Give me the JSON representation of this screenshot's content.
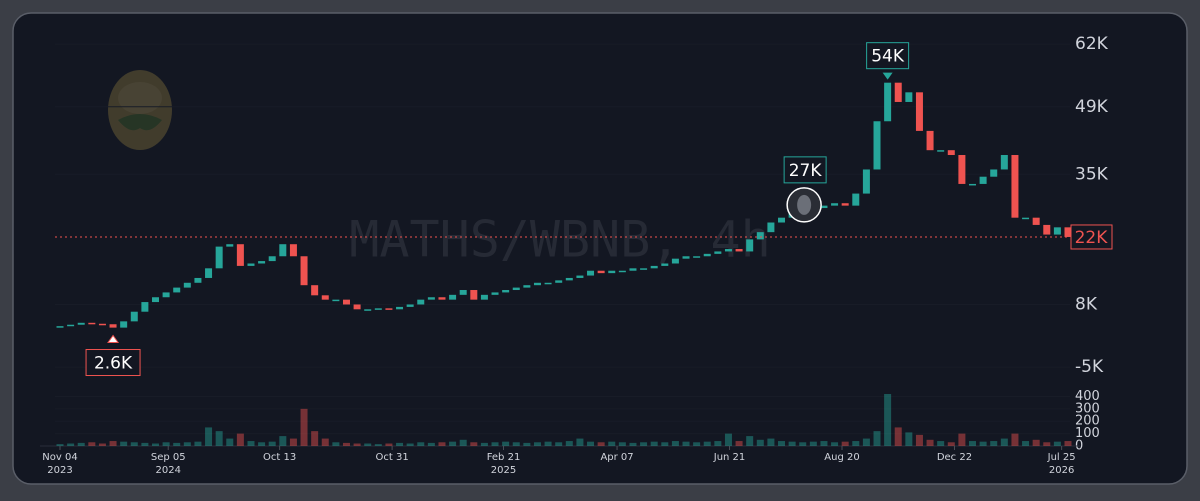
{
  "chart_data": {
    "type": "candlestick",
    "watermark": "MATHS/WBNB, 4h",
    "colors": {
      "up": "#26a69a",
      "down": "#ef5350"
    },
    "xlim": [
      -1,
      96.5
    ],
    "xticks": [
      {
        "value": 0,
        "label": "Nov 04"
      },
      {
        "value": 10.2,
        "label": "Sep 05"
      },
      {
        "value": 20.7,
        "label": "Oct 13"
      },
      {
        "value": 31.3,
        "label": "Oct 31"
      },
      {
        "value": 41.8,
        "label": "Feb 21"
      },
      {
        "value": 52.5,
        "label": "Apr 07"
      },
      {
        "value": 63.1,
        "label": "Jun 21"
      },
      {
        "value": 73.7,
        "label": "Aug 20"
      },
      {
        "value": 84.3,
        "label": "Dec 22"
      },
      {
        "value": 94.4,
        "label": "Jul 25"
      }
    ],
    "xtick_years": [
      "2023",
      "2024",
      null,
      null,
      "2025",
      null,
      null,
      null,
      null,
      "2026"
    ],
    "ylim": [
      -8700,
      67000
    ],
    "yticks": [
      {
        "value": 62000,
        "label": "62K"
      },
      {
        "value": 49000,
        "label": "49K"
      },
      {
        "value": 35000,
        "label": "35K"
      },
      {
        "value": 8000,
        "label": "8K"
      },
      {
        "value": -5000,
        "label": "-5K"
      }
    ],
    "open": [
      3300,
      3500,
      3800,
      4200,
      4000,
      3900,
      3200,
      4500,
      6500,
      8500,
      9500,
      10500,
      11500,
      12500,
      13500,
      15500,
      20000,
      20500,
      16000,
      16500,
      17000,
      18000,
      20500,
      18000,
      12000,
      9900,
      9000,
      9000,
      8000,
      7000,
      7000,
      7200,
      7000,
      7500,
      8000,
      9000,
      9500,
      9000,
      10000,
      11000,
      9000,
      10000,
      10500,
      11000,
      11500,
      12000,
      12500,
      12500,
      13000,
      13500,
      14000,
      15000,
      14500,
      15000,
      15000,
      15500,
      15500,
      16000,
      16500,
      17500,
      18000,
      18000,
      18500,
      19000,
      19500,
      19000,
      21500,
      23000,
      25000,
      26000,
      27000,
      27500,
      28000,
      28500,
      29000,
      28500,
      31000,
      36000,
      46000,
      54000,
      50000,
      52000,
      44000,
      40000,
      40000,
      39000,
      33000,
      33000,
      34500,
      36000,
      39000,
      26000,
      26000,
      24500,
      22500,
      24000
    ],
    "close": [
      3500,
      3800,
      4200,
      4000,
      3900,
      3200,
      4500,
      6500,
      8500,
      9500,
      10500,
      11500,
      12500,
      13500,
      15500,
      20000,
      20500,
      16000,
      16500,
      17000,
      18000,
      20500,
      18000,
      12000,
      9900,
      9000,
      9000,
      8000,
      7000,
      7000,
      7200,
      7000,
      7500,
      8000,
      9000,
      9500,
      9000,
      10000,
      11000,
      9000,
      10000,
      10500,
      11000,
      11500,
      12000,
      12500,
      12500,
      13000,
      13500,
      14000,
      15000,
      14500,
      15000,
      15000,
      15500,
      15500,
      16000,
      16500,
      17500,
      18000,
      18000,
      18500,
      19000,
      19500,
      19000,
      21500,
      23000,
      25000,
      26000,
      27000,
      27500,
      28000,
      28500,
      29000,
      28500,
      31000,
      36000,
      46000,
      54000,
      50000,
      52000,
      44000,
      40000,
      40000,
      39000,
      33000,
      33000,
      34500,
      36000,
      39000,
      26000,
      26000,
      24500,
      22500,
      24000,
      22000
    ],
    "volume": [
      15,
      20,
      25,
      30,
      20,
      40,
      35,
      30,
      25,
      20,
      30,
      25,
      30,
      35,
      150,
      120,
      60,
      100,
      40,
      30,
      35,
      80,
      60,
      300,
      120,
      60,
      30,
      25,
      20,
      20,
      15,
      20,
      25,
      20,
      30,
      25,
      30,
      35,
      50,
      30,
      25,
      30,
      35,
      30,
      25,
      30,
      35,
      30,
      40,
      60,
      35,
      30,
      35,
      30,
      25,
      30,
      35,
      30,
      40,
      35,
      30,
      35,
      40,
      100,
      40,
      80,
      50,
      60,
      40,
      35,
      30,
      35,
      40,
      30,
      35,
      40,
      60,
      120,
      420,
      150,
      110,
      90,
      50,
      40,
      30,
      100,
      40,
      35,
      40,
      60,
      100,
      40,
      50,
      30,
      35,
      40
    ],
    "vlim": [
      0,
      420
    ],
    "vticks": [
      0,
      100,
      200,
      300,
      400
    ],
    "annotations": [
      {
        "x": 5,
        "value": 2600,
        "label": "2.6K",
        "kind": "low"
      },
      {
        "x": 69,
        "value": 27000,
        "label": "27K",
        "kind": "avatar"
      },
      {
        "x": 78,
        "value": 54000,
        "label": "54K",
        "kind": "high"
      }
    ],
    "last_price": {
      "value": 22000,
      "label": "22K"
    }
  }
}
